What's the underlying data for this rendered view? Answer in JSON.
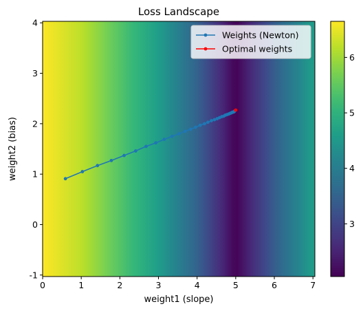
{
  "chart_data": {
    "type": "heatmap",
    "title": "Loss Landscape",
    "xlabel": "weight1 (slope)",
    "ylabel": "weight2 (bias)",
    "xlim": [
      0,
      7.05
    ],
    "ylim": [
      -1.03,
      4.03
    ],
    "x_ticks": [
      0,
      1,
      2,
      3,
      4,
      5,
      6,
      7
    ],
    "y_ticks": [
      -1,
      0,
      1,
      2,
      3,
      4
    ],
    "colormap": "viridis",
    "colorbar": {
      "range": [
        2.05,
        6.65
      ],
      "ticks": [
        3,
        4,
        5,
        6
      ]
    },
    "heatmap_description": "loss depends mainly on weight1; minimum near weight1 = 5.0",
    "loss_profile": {
      "weight1": [
        0.0,
        1.0,
        2.0,
        3.0,
        4.0,
        5.0,
        6.0,
        7.0
      ],
      "loss": [
        6.65,
        6.2,
        5.4,
        4.6,
        3.5,
        2.05,
        3.4,
        4.6
      ]
    },
    "series": [
      {
        "name": "Weights (Newton)",
        "color": "#1f77b4",
        "marker": "circle",
        "x": [
          0.59,
          1.03,
          1.42,
          1.78,
          2.11,
          2.41,
          2.68,
          2.93,
          3.15,
          3.35,
          3.53,
          3.69,
          3.83,
          3.96,
          4.08,
          4.19,
          4.28,
          4.37,
          4.45,
          4.52,
          4.58,
          4.64,
          4.69,
          4.73,
          4.77,
          4.81,
          4.84,
          4.87,
          4.9,
          4.92,
          4.94,
          4.96,
          4.97
        ],
        "y": [
          0.91,
          1.05,
          1.17,
          1.27,
          1.37,
          1.46,
          1.55,
          1.62,
          1.69,
          1.75,
          1.8,
          1.85,
          1.89,
          1.93,
          1.97,
          2.0,
          2.03,
          2.06,
          2.08,
          2.1,
          2.12,
          2.14,
          2.15,
          2.17,
          2.18,
          2.19,
          2.2,
          2.21,
          2.22,
          2.23,
          2.23,
          2.24,
          2.25
        ]
      },
      {
        "name": "Optimal weights",
        "color": "#ff0000",
        "marker": "circle",
        "x": [
          5.0
        ],
        "y": [
          2.27
        ]
      }
    ],
    "legend_position": "top-right",
    "grid": false
  }
}
